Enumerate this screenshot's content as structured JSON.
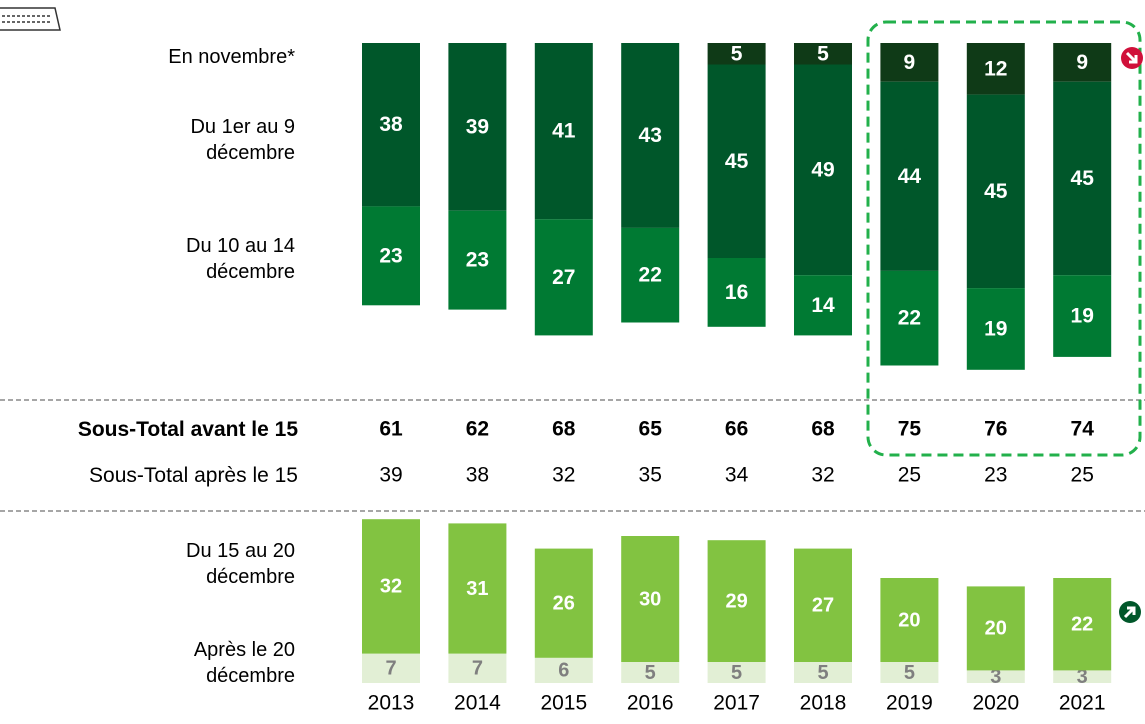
{
  "chart_data": {
    "type": "bar",
    "categories": [
      "2013",
      "2014",
      "2015",
      "2016",
      "2017",
      "2018",
      "2019",
      "2020",
      "2021"
    ],
    "top_series": [
      {
        "name": "En novembre*",
        "color": "#0f3a17",
        "values": [
          null,
          null,
          null,
          null,
          5,
          5,
          9,
          12,
          9
        ]
      },
      {
        "name": "Du 1er au 9 décembre",
        "color": "#00572a",
        "values": [
          38,
          39,
          41,
          43,
          45,
          49,
          44,
          45,
          45
        ]
      },
      {
        "name": "Du 10 au 14 décembre",
        "color": "#007a33",
        "values": [
          23,
          23,
          27,
          22,
          16,
          14,
          22,
          19,
          19
        ]
      }
    ],
    "rows": [
      {
        "label": "Sous-Total avant le 15",
        "values": [
          61,
          62,
          68,
          65,
          66,
          68,
          75,
          76,
          74
        ]
      },
      {
        "label": "Sous-Total après le 15",
        "values": [
          39,
          38,
          32,
          35,
          34,
          32,
          25,
          23,
          25
        ]
      }
    ],
    "bottom_series": [
      {
        "name": "Après  le 20 décembre",
        "color": "#e2efd5",
        "values": [
          7,
          7,
          6,
          5,
          5,
          5,
          5,
          3,
          3
        ]
      },
      {
        "name": "Du 15 au 20 décembre",
        "color": "#82c341",
        "values": [
          32,
          31,
          26,
          30,
          29,
          27,
          20,
          20,
          22
        ]
      }
    ]
  }
}
